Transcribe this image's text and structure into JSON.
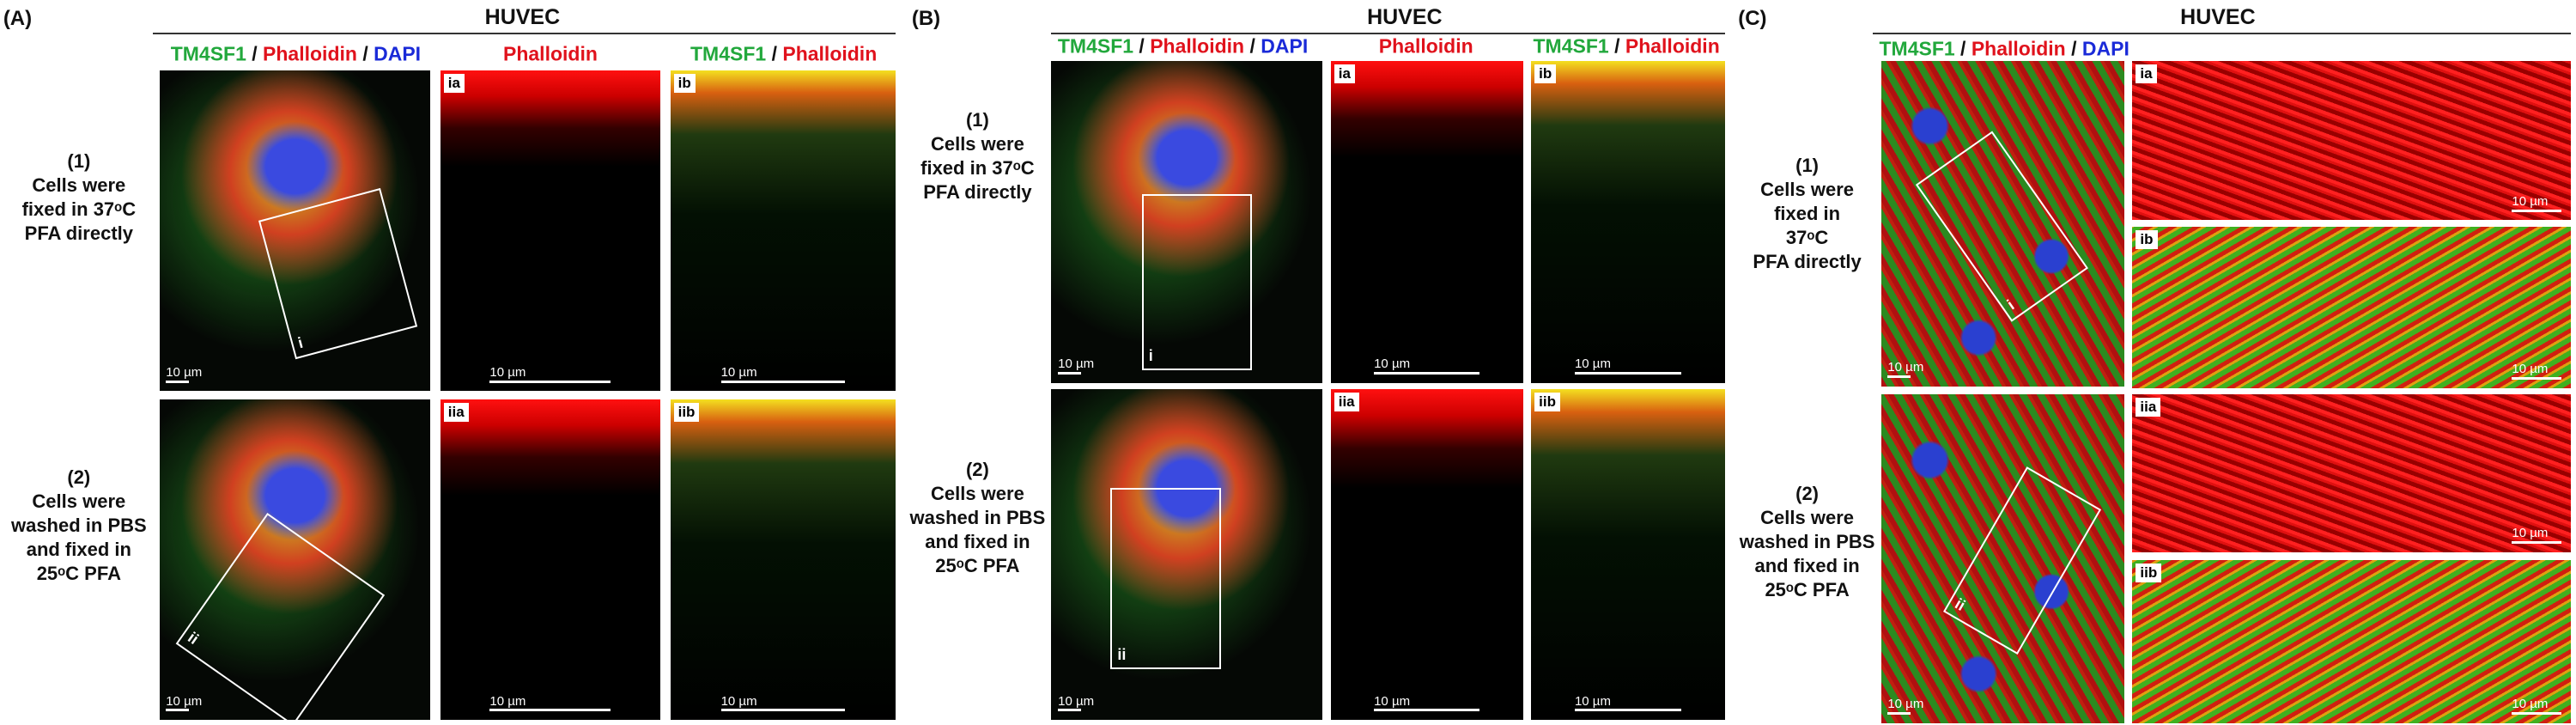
{
  "panels": [
    {
      "label": "(A)",
      "title": "HUVEC",
      "column_headers": [
        [
          {
            "text": "TM4SF1",
            "color": "#22a83c"
          },
          {
            "text": " / ",
            "color": "#111111"
          },
          {
            "text": "Phalloidin",
            "color": "#e0121c"
          },
          {
            "text": " / ",
            "color": "#111111"
          },
          {
            "text": "DAPI",
            "color": "#1a2ad8"
          }
        ],
        [
          {
            "text": "Phalloidin",
            "color": "#e0121c"
          }
        ],
        [
          {
            "text": "TM4SF1",
            "color": "#22a83c"
          },
          {
            "text": " / ",
            "color": "#111111"
          },
          {
            "text": "Phalloidin",
            "color": "#e0121c"
          }
        ]
      ],
      "row_labels": [
        [
          "(1)",
          "Cells were",
          "fixed in 37ᵒC",
          "PFA directly"
        ],
        [
          "(2)",
          "Cells were",
          "washed in PBS",
          "and fixed in",
          "25ᵒC PFA"
        ]
      ],
      "images": [
        {
          "tag": "i",
          "scale": "10 µm"
        },
        {
          "tag": "ia",
          "scale": "10 µm"
        },
        {
          "tag": "ib",
          "scale": "10 µm"
        },
        {
          "tag": "ii",
          "scale": "10 µm"
        },
        {
          "tag": "iia",
          "scale": "10 µm"
        },
        {
          "tag": "iib",
          "scale": "10 µm"
        }
      ]
    },
    {
      "label": "(B)",
      "title": "HUVEC",
      "column_headers": [
        [
          {
            "text": "TM4SF1",
            "color": "#22a83c"
          },
          {
            "text": " / ",
            "color": "#111111"
          },
          {
            "text": "Phalloidin",
            "color": "#e0121c"
          },
          {
            "text": " / ",
            "color": "#111111"
          },
          {
            "text": "DAPI",
            "color": "#1a2ad8"
          }
        ],
        [
          {
            "text": "Phalloidin",
            "color": "#e0121c"
          }
        ],
        [
          {
            "text": "TM4SF1",
            "color": "#22a83c"
          },
          {
            "text": " / ",
            "color": "#111111"
          },
          {
            "text": "Phalloidin",
            "color": "#e0121c"
          }
        ]
      ],
      "row_labels": [
        [
          "(1)",
          "Cells were",
          "fixed in 37ᵒC",
          "PFA directly"
        ],
        [
          "(2)",
          "Cells were",
          "washed in PBS",
          "and fixed in",
          "25ᵒC PFA"
        ]
      ],
      "images": [
        {
          "tag": "i",
          "scale": "10 µm"
        },
        {
          "tag": "ia",
          "scale": "10 µm"
        },
        {
          "tag": "ib",
          "scale": "10 µm"
        },
        {
          "tag": "ii",
          "scale": "10 µm"
        },
        {
          "tag": "iia",
          "scale": "10 µm"
        },
        {
          "tag": "iib",
          "scale": "10 µm"
        }
      ]
    },
    {
      "label": "(C)",
      "title": "HUVEC",
      "column_headers": [
        [
          {
            "text": "TM4SF1",
            "color": "#22a83c"
          },
          {
            "text": " / ",
            "color": "#111111"
          },
          {
            "text": "Phalloidin",
            "color": "#e0121c"
          },
          {
            "text": " / ",
            "color": "#111111"
          },
          {
            "text": "DAPI",
            "color": "#1a2ad8"
          }
        ]
      ],
      "row_labels": [
        [
          "(1)",
          "Cells were",
          "fixed in",
          "37ᵒC",
          "PFA directly"
        ],
        [
          "(2)",
          "Cells were",
          "washed in PBS",
          "and fixed in",
          "25ᵒC PFA"
        ]
      ],
      "images": [
        {
          "tag": "i",
          "scale": "10 µm"
        },
        {
          "tag": "ia",
          "scale": "10 µm"
        },
        {
          "tag": "ib",
          "scale": "10 µm"
        },
        {
          "tag": "ii",
          "scale": "10 µm"
        },
        {
          "tag": "iia",
          "scale": "10 µm"
        },
        {
          "tag": "iib",
          "scale": "10 µm"
        }
      ]
    }
  ]
}
